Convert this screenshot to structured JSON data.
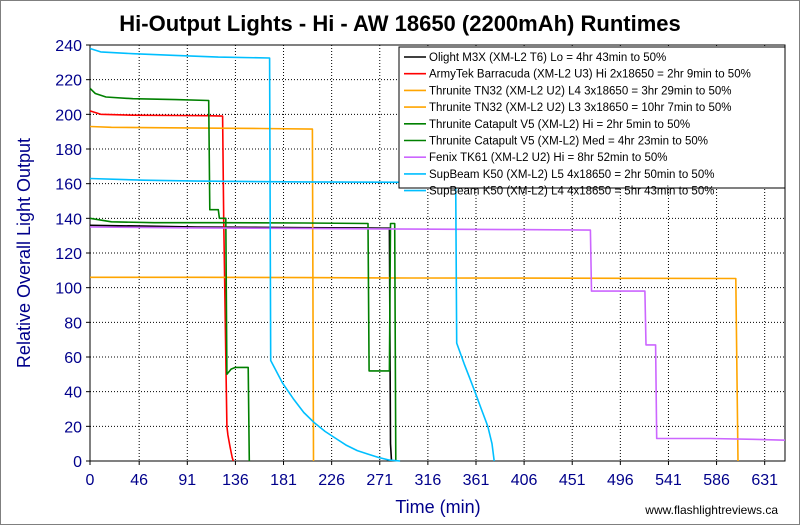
{
  "chart_data": {
    "type": "line",
    "title": "Hi-Output Lights - Hi - AW 18650 (2200mAh) Runtimes",
    "xlabel": "Time (min)",
    "ylabel": "Relative Overall Light Output",
    "xlim": [
      0,
      650
    ],
    "ylim": [
      0,
      240
    ],
    "xticks": [
      0,
      46,
      91,
      136,
      181,
      226,
      271,
      316,
      361,
      406,
      451,
      496,
      541,
      586,
      631
    ],
    "yticks": [
      0,
      20,
      40,
      60,
      80,
      100,
      120,
      140,
      160,
      180,
      200,
      220,
      240
    ],
    "grid": true,
    "legend_position": "top-right",
    "credit": "www.flashlightreviews.ca",
    "series": [
      {
        "name": "Olight M3X (XM-L2 T6) Lo = 4hr 43min to 50%",
        "color": "#000000",
        "points": [
          [
            0,
            136
          ],
          [
            50,
            135.5
          ],
          [
            100,
            135
          ],
          [
            150,
            134.8
          ],
          [
            200,
            134.6
          ],
          [
            250,
            134.5
          ],
          [
            280,
            134.3
          ],
          [
            281,
            10
          ],
          [
            282,
            0
          ]
        ]
      },
      {
        "name": "ArmyTek Barracuda (XM-L2 U3) Hi 2x18650 = 2hr 9min to 50%",
        "color": "#ff0000",
        "points": [
          [
            0,
            202
          ],
          [
            10,
            200
          ],
          [
            40,
            199.5
          ],
          [
            80,
            199.3
          ],
          [
            110,
            199.2
          ],
          [
            124,
            199
          ],
          [
            125,
            140
          ],
          [
            127,
            60
          ],
          [
            128,
            20
          ],
          [
            129,
            15
          ],
          [
            131,
            8
          ],
          [
            133,
            2
          ],
          [
            134,
            0
          ]
        ]
      },
      {
        "name": "Thrunite TN32 (XM-L2 U2) L4 3x18650 = 3hr 29min to 50%",
        "color": "#ffa500",
        "points": [
          [
            0,
            193
          ],
          [
            20,
            192.5
          ],
          [
            60,
            192.3
          ],
          [
            120,
            192
          ],
          [
            160,
            191.8
          ],
          [
            208,
            191.5
          ],
          [
            209,
            0
          ]
        ]
      },
      {
        "name": "Thrunite TN32 (XM-L2 U2) L3 3x18650 = 10hr 7min to 50%",
        "color": "#ffa500",
        "points": [
          [
            0,
            106
          ],
          [
            100,
            106
          ],
          [
            200,
            105.8
          ],
          [
            300,
            105.6
          ],
          [
            400,
            105.5
          ],
          [
            500,
            105.4
          ],
          [
            604,
            105.3
          ],
          [
            606,
            0
          ]
        ]
      },
      {
        "name": "Thrunite Catapult V5 (XM-L2) Hi = 2hr 5min to 50%",
        "color": "#008000",
        "points": [
          [
            0,
            215
          ],
          [
            5,
            212
          ],
          [
            15,
            210
          ],
          [
            40,
            209
          ],
          [
            80,
            208.5
          ],
          [
            111,
            208
          ],
          [
            112,
            145
          ],
          [
            120,
            145
          ],
          [
            121,
            140
          ],
          [
            127,
            140
          ],
          [
            128,
            50
          ],
          [
            132,
            53
          ],
          [
            136,
            54
          ],
          [
            148,
            54
          ],
          [
            149,
            0
          ]
        ]
      },
      {
        "name": "Thrunite Catapult V5 (XM-L2) Med = 4hr 23min to 50%",
        "color": "#008000",
        "points": [
          [
            0,
            140
          ],
          [
            20,
            138
          ],
          [
            60,
            137.5
          ],
          [
            120,
            137.5
          ],
          [
            200,
            137.3
          ],
          [
            260,
            137
          ],
          [
            261,
            52
          ],
          [
            280,
            52
          ],
          [
            281,
            137
          ],
          [
            285,
            137
          ],
          [
            286,
            0
          ]
        ]
      },
      {
        "name": "Fenix TK61 (XM-L2 U2) Hi = 8hr 52min to 50%",
        "color": "#cc66ff",
        "points": [
          [
            0,
            135
          ],
          [
            100,
            134.5
          ],
          [
            200,
            134.2
          ],
          [
            300,
            133.8
          ],
          [
            400,
            133.5
          ],
          [
            468,
            133.2
          ],
          [
            469,
            98
          ],
          [
            519,
            98
          ],
          [
            520,
            67
          ],
          [
            529,
            67
          ],
          [
            530,
            13
          ],
          [
            580,
            13
          ],
          [
            620,
            12.5
          ],
          [
            650,
            12
          ]
        ]
      },
      {
        "name": "SupBeam K50 (XM-L2) L5 4x18650 = 2hr 50min to 50%",
        "color": "#00bfff",
        "points": [
          [
            0,
            238
          ],
          [
            10,
            236
          ],
          [
            40,
            235
          ],
          [
            80,
            234
          ],
          [
            120,
            233
          ],
          [
            168,
            232.5
          ],
          [
            169,
            58
          ],
          [
            180,
            45
          ],
          [
            190,
            36
          ],
          [
            200,
            28
          ],
          [
            210,
            22
          ],
          [
            220,
            17
          ],
          [
            230,
            13
          ],
          [
            240,
            9
          ],
          [
            250,
            6
          ],
          [
            260,
            4
          ],
          [
            270,
            2
          ],
          [
            280,
            0.5
          ],
          [
            290,
            0
          ]
        ]
      },
      {
        "name": "SupBeam K50 (XM-L2) L4 4x18650 = 5hr 43min to 50%",
        "color": "#00bfff",
        "points": [
          [
            0,
            163
          ],
          [
            50,
            162
          ],
          [
            100,
            161.5
          ],
          [
            200,
            161
          ],
          [
            300,
            160.8
          ],
          [
            342,
            160.5
          ],
          [
            343,
            68
          ],
          [
            350,
            56
          ],
          [
            355,
            48
          ],
          [
            360,
            40
          ],
          [
            366,
            30
          ],
          [
            372,
            20
          ],
          [
            376,
            10
          ],
          [
            378,
            0
          ]
        ]
      }
    ]
  }
}
